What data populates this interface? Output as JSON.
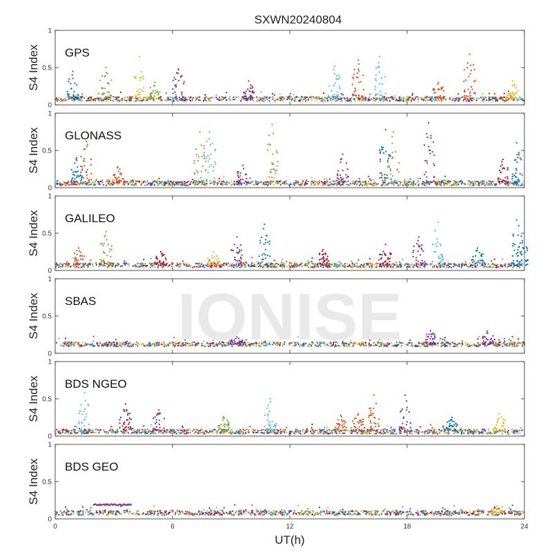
{
  "title": "SXWN20240804",
  "xlabel": "UT(h)",
  "ylabel": "S4 Index",
  "watermark": "IONISE",
  "colors": [
    "#0072bd",
    "#d95319",
    "#edb120",
    "#7e2f8e",
    "#77ac30",
    "#4dbeee",
    "#a2142f"
  ],
  "chart_data": [
    {
      "type": "scatter",
      "panel": "GPS",
      "xlim": [
        0,
        24
      ],
      "ylim": [
        0,
        1
      ],
      "xticks": [
        0,
        6,
        12,
        18,
        24
      ],
      "yticks": [
        0,
        0.5,
        1
      ],
      "baseline": 0.08,
      "bursts": [
        {
          "x": 0.9,
          "peak": 0.45,
          "c": 0
        },
        {
          "x": 2.6,
          "peak": 0.5,
          "c": 4
        },
        {
          "x": 4.3,
          "peak": 0.65,
          "c": 2
        },
        {
          "x": 5.1,
          "peak": 0.3,
          "c": 4
        },
        {
          "x": 6.3,
          "peak": 0.48,
          "c": 3
        },
        {
          "x": 9.9,
          "peak": 0.32,
          "c": 3
        },
        {
          "x": 14.3,
          "peak": 0.52,
          "c": 5
        },
        {
          "x": 15.5,
          "peak": 0.6,
          "c": 1
        },
        {
          "x": 16.6,
          "peak": 0.65,
          "c": 5
        },
        {
          "x": 19.6,
          "peak": 0.3,
          "c": 1
        },
        {
          "x": 21.2,
          "peak": 0.68,
          "c": 1
        },
        {
          "x": 23.4,
          "peak": 0.32,
          "c": 2
        }
      ]
    },
    {
      "type": "scatter",
      "panel": "GLONASS",
      "xlim": [
        0,
        24
      ],
      "ylim": [
        0,
        1
      ],
      "xticks": [
        0,
        6,
        12,
        18,
        24
      ],
      "yticks": [
        0,
        0.5,
        1
      ],
      "baseline": 0.06,
      "bursts": [
        {
          "x": 1.1,
          "peak": 0.4,
          "c": 0
        },
        {
          "x": 1.6,
          "peak": 0.62,
          "c": 1
        },
        {
          "x": 3.2,
          "peak": 0.28,
          "c": 1
        },
        {
          "x": 7.4,
          "peak": 0.75,
          "c": 4
        },
        {
          "x": 7.9,
          "peak": 0.75,
          "c": 5
        },
        {
          "x": 9.6,
          "peak": 0.3,
          "c": 3
        },
        {
          "x": 11.1,
          "peak": 0.85,
          "c": 4
        },
        {
          "x": 14.7,
          "peak": 0.45,
          "c": 3
        },
        {
          "x": 16.9,
          "peak": 0.78,
          "c": 0
        },
        {
          "x": 17.3,
          "peak": 0.75,
          "c": 4
        },
        {
          "x": 19.1,
          "peak": 0.87,
          "c": 3
        },
        {
          "x": 22.9,
          "peak": 0.38,
          "c": 6
        },
        {
          "x": 23.6,
          "peak": 0.6,
          "c": 0
        }
      ]
    },
    {
      "type": "scatter",
      "panel": "GALILEO",
      "xlim": [
        0,
        24
      ],
      "ylim": [
        0,
        1
      ],
      "xticks": [
        0,
        6,
        12,
        18,
        24
      ],
      "yticks": [
        0,
        0.5,
        1
      ],
      "baseline": 0.07,
      "bursts": [
        {
          "x": 1.2,
          "peak": 0.3,
          "c": 1
        },
        {
          "x": 2.6,
          "peak": 0.52,
          "c": 4
        },
        {
          "x": 5.4,
          "peak": 0.25,
          "c": 6
        },
        {
          "x": 8.1,
          "peak": 0.25,
          "c": 2
        },
        {
          "x": 9.3,
          "peak": 0.45,
          "c": 3
        },
        {
          "x": 10.7,
          "peak": 0.62,
          "c": 0
        },
        {
          "x": 13.7,
          "peak": 0.28,
          "c": 6
        },
        {
          "x": 16.9,
          "peak": 0.35,
          "c": 6
        },
        {
          "x": 18.6,
          "peak": 0.45,
          "c": 3
        },
        {
          "x": 19.6,
          "peak": 0.65,
          "c": 5
        },
        {
          "x": 21.6,
          "peak": 0.3,
          "c": 0
        },
        {
          "x": 23.6,
          "peak": 0.68,
          "c": 0
        },
        {
          "x": 23.9,
          "peak": 0.4,
          "c": 0
        }
      ]
    },
    {
      "type": "scatter",
      "panel": "SBAS",
      "xlim": [
        0,
        24
      ],
      "ylim": [
        0,
        1
      ],
      "xticks": [
        0,
        6,
        12,
        18,
        24
      ],
      "yticks": [
        0,
        0.5,
        1
      ],
      "baseline": 0.12,
      "bursts": [
        {
          "x": 9.3,
          "peak": 0.22,
          "c": 3
        },
        {
          "x": 19.2,
          "peak": 0.3,
          "c": 3
        },
        {
          "x": 22.1,
          "peak": 0.3,
          "c": 3
        }
      ]
    },
    {
      "type": "scatter",
      "panel": "BDS NGEO",
      "xlim": [
        0,
        24
      ],
      "ylim": [
        0,
        1
      ],
      "xticks": [
        0,
        6,
        12,
        18,
        24
      ],
      "yticks": [
        0,
        0.5,
        1
      ],
      "baseline": 0.06,
      "bursts": [
        {
          "x": 1.5,
          "peak": 0.58,
          "c": 5
        },
        {
          "x": 3.6,
          "peak": 0.43,
          "c": 6
        },
        {
          "x": 5.3,
          "peak": 0.35,
          "c": 3
        },
        {
          "x": 8.6,
          "peak": 0.26,
          "c": 4
        },
        {
          "x": 11.0,
          "peak": 0.5,
          "c": 5
        },
        {
          "x": 14.6,
          "peak": 0.28,
          "c": 1
        },
        {
          "x": 15.5,
          "peak": 0.3,
          "c": 1
        },
        {
          "x": 16.3,
          "peak": 0.55,
          "c": 1
        },
        {
          "x": 17.9,
          "peak": 0.55,
          "c": 3
        },
        {
          "x": 20.3,
          "peak": 0.25,
          "c": 0
        },
        {
          "x": 22.7,
          "peak": 0.3,
          "c": 2
        }
      ]
    },
    {
      "type": "scatter",
      "panel": "BDS GEO",
      "xlim": [
        0,
        24
      ],
      "ylim": [
        0,
        1
      ],
      "xticks": [
        0,
        6,
        12,
        18,
        24
      ],
      "yticks": [
        0,
        0.5,
        1
      ],
      "baseline": 0.08,
      "segments": [
        {
          "x0": 2.0,
          "x1": 3.9,
          "y": 0.19,
          "c": 3
        }
      ],
      "bursts": [
        {
          "x": 22.6,
          "peak": 0.17,
          "c": 2
        }
      ]
    }
  ]
}
